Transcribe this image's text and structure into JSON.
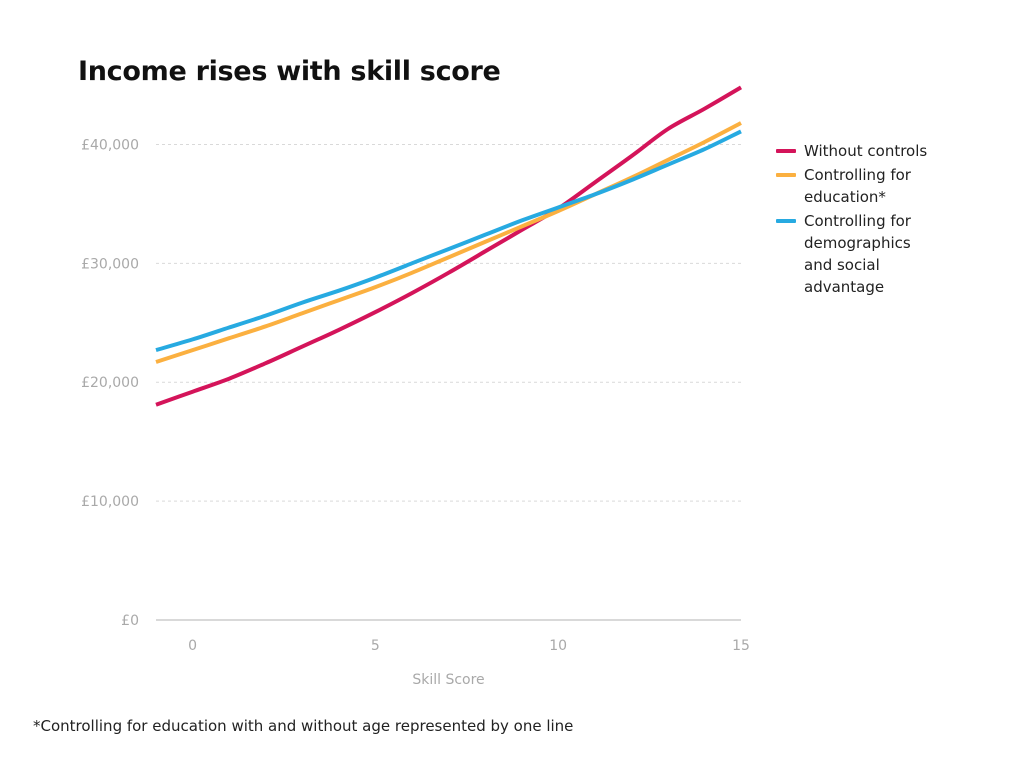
{
  "chart_data": {
    "type": "line",
    "title": "Income rises with skill score",
    "xlabel": "Skill Score",
    "ylabel": "",
    "xlim": [
      -1,
      15
    ],
    "ylim": [
      0,
      45000
    ],
    "x_ticks": [
      0,
      5,
      10,
      15
    ],
    "x_tick_labels": [
      "0",
      "5",
      "10",
      "15"
    ],
    "y_ticks": [
      0,
      10000,
      20000,
      30000,
      40000
    ],
    "y_tick_labels": [
      "£0",
      "£10,000",
      "£20,000",
      "£30,000",
      "£40,000"
    ],
    "grid": "horizontal-dashed",
    "legend_position": "right",
    "series": [
      {
        "name": "Without controls",
        "color": "#d4145a",
        "x": [
          -1,
          0,
          1,
          2,
          3,
          4,
          5,
          6,
          7,
          8,
          9,
          10,
          11,
          12,
          13,
          14,
          15
        ],
        "y": [
          18100,
          19200,
          20300,
          21600,
          23000,
          24400,
          25900,
          27500,
          29200,
          31000,
          32800,
          34600,
          36800,
          39000,
          41300,
          43000,
          44800
        ]
      },
      {
        "name": "Controlling for education*",
        "color": "#fbb040",
        "x": [
          -1,
          0,
          1,
          2,
          3,
          4,
          5,
          6,
          7,
          8,
          9,
          10,
          11,
          12,
          13,
          14,
          15
        ],
        "y": [
          21700,
          22700,
          23700,
          24700,
          25800,
          26900,
          28000,
          29200,
          30500,
          31800,
          33100,
          34400,
          35800,
          37200,
          38700,
          40200,
          41800
        ]
      },
      {
        "name": "Controlling for demographics and social advantage",
        "color": "#27aae1",
        "x": [
          -1,
          0,
          1,
          2,
          3,
          4,
          5,
          6,
          7,
          8,
          9,
          10,
          11,
          12,
          13,
          14,
          15
        ],
        "y": [
          22700,
          23600,
          24600,
          25600,
          26700,
          27700,
          28800,
          30000,
          31200,
          32400,
          33600,
          34700,
          35800,
          37000,
          38300,
          39600,
          41100
        ]
      }
    ]
  },
  "legend": {
    "items": [
      {
        "label": "Without controls",
        "color": "#d4145a"
      },
      {
        "label": "Controlling for education*",
        "color": "#fbb040"
      },
      {
        "label": "Controlling for demographics and social advantage",
        "color": "#27aae1"
      }
    ]
  },
  "footnote": "*Controlling for education with and without age represented by one line"
}
